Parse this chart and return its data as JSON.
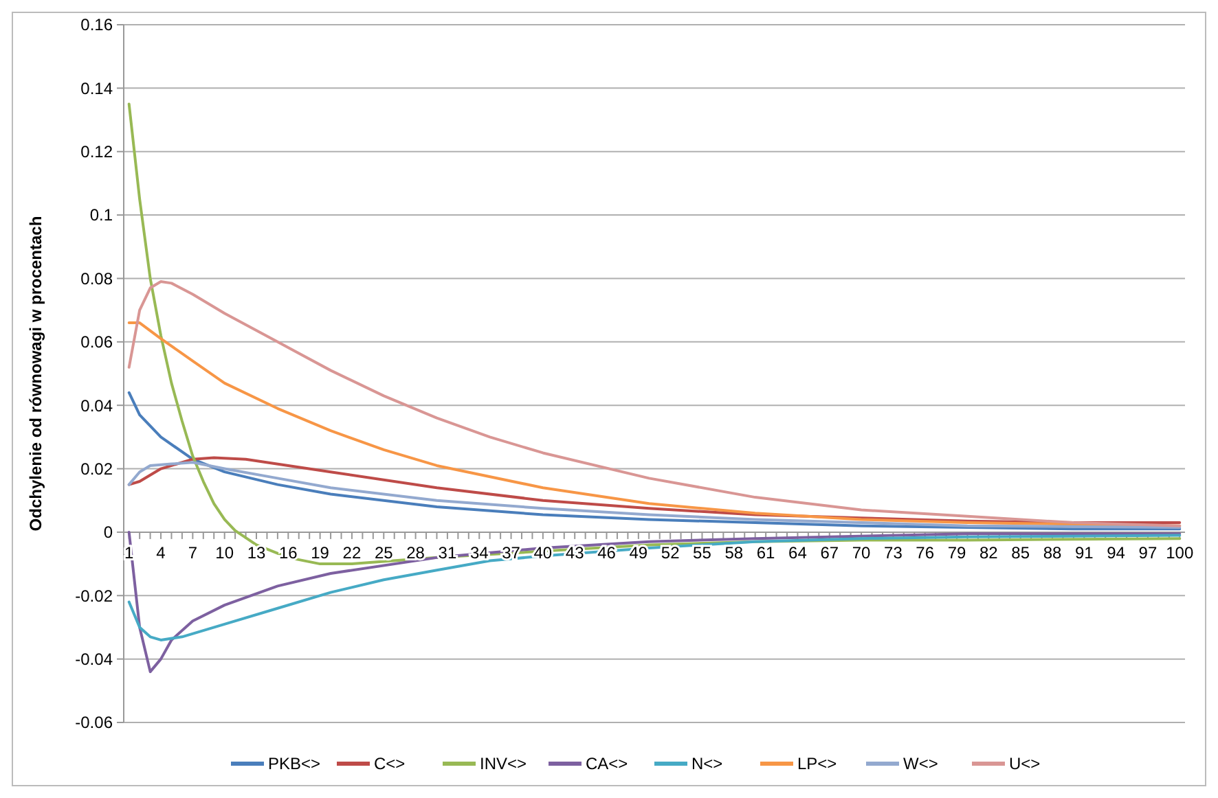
{
  "chart_data": {
    "type": "line",
    "ylabel": "Odchylenie od równowagi w procentach",
    "xlim": [
      0.5,
      100.5
    ],
    "xticks": [
      1,
      4,
      7,
      10,
      13,
      16,
      19,
      22,
      25,
      28,
      31,
      34,
      37,
      40,
      43,
      46,
      49,
      52,
      55,
      58,
      61,
      64,
      67,
      70,
      73,
      76,
      79,
      82,
      85,
      88,
      91,
      94,
      97,
      100
    ],
    "ylim": [
      -0.06,
      0.16
    ],
    "yticks": [
      -0.06,
      -0.04,
      -0.02,
      0,
      0.02,
      0.04,
      0.06,
      0.08,
      0.1,
      0.12,
      0.14,
      0.16
    ],
    "grid": "y",
    "legend": "bottom",
    "marker": "none",
    "line_style": "solid",
    "series": [
      {
        "name": "PKB<>",
        "color": "#4a7ebb",
        "x": [
          1,
          2,
          4,
          7,
          10,
          15,
          20,
          30,
          40,
          50,
          60,
          70,
          80,
          90,
          100
        ],
        "values": [
          0.044,
          0.037,
          0.03,
          0.023,
          0.019,
          0.015,
          0.012,
          0.008,
          0.0055,
          0.004,
          0.003,
          0.002,
          0.0015,
          0.001,
          0.001
        ]
      },
      {
        "name": "C<>",
        "color": "#be4b48",
        "x": [
          1,
          2,
          4,
          7,
          9,
          12,
          20,
          30,
          40,
          50,
          60,
          70,
          80,
          90,
          100
        ],
        "values": [
          0.015,
          0.016,
          0.02,
          0.023,
          0.0235,
          0.023,
          0.019,
          0.014,
          0.01,
          0.0075,
          0.0055,
          0.0045,
          0.0035,
          0.003,
          0.003
        ]
      },
      {
        "name": "INV<>",
        "color": "#98b954",
        "x": [
          1,
          2,
          3,
          4,
          5,
          6,
          7,
          8,
          9,
          10,
          11,
          13,
          16,
          19,
          22,
          30,
          40,
          50,
          60,
          70,
          80,
          100
        ],
        "values": [
          0.135,
          0.105,
          0.08,
          0.062,
          0.047,
          0.035,
          0.024,
          0.016,
          0.009,
          0.004,
          0.0005,
          -0.004,
          -0.008,
          -0.01,
          -0.01,
          -0.008,
          -0.006,
          -0.004,
          -0.003,
          -0.0025,
          -0.0025,
          -0.002
        ]
      },
      {
        "name": "CA<>",
        "color": "#7d60a0",
        "x": [
          1,
          2,
          3,
          4,
          5,
          7,
          10,
          15,
          20,
          30,
          40,
          50,
          60,
          80,
          100
        ],
        "values": [
          0,
          -0.03,
          -0.044,
          -0.04,
          -0.034,
          -0.028,
          -0.023,
          -0.017,
          -0.013,
          -0.008,
          -0.005,
          -0.003,
          -0.002,
          -0.0005,
          -0.0005
        ]
      },
      {
        "name": "N<>",
        "color": "#46aac5",
        "x": [
          1,
          2,
          3,
          4,
          6,
          10,
          15,
          20,
          25,
          30,
          35,
          40,
          50,
          60,
          70,
          80,
          100
        ],
        "values": [
          -0.022,
          -0.03,
          -0.033,
          -0.034,
          -0.033,
          -0.029,
          -0.024,
          -0.019,
          -0.015,
          -0.012,
          -0.009,
          -0.0075,
          -0.005,
          -0.003,
          -0.002,
          -0.0015,
          -0.001
        ]
      },
      {
        "name": "LP<>",
        "color": "#f79646",
        "x": [
          1,
          2,
          4,
          7,
          10,
          15,
          20,
          25,
          30,
          40,
          50,
          60,
          70,
          80,
          100
        ],
        "values": [
          0.066,
          0.066,
          0.061,
          0.054,
          0.047,
          0.039,
          0.032,
          0.026,
          0.021,
          0.014,
          0.009,
          0.006,
          0.004,
          0.003,
          0.002
        ]
      },
      {
        "name": "W<>",
        "color": "#93a9cf",
        "x": [
          1,
          2,
          3,
          5,
          7,
          10,
          15,
          20,
          30,
          40,
          50,
          60,
          70,
          80,
          100
        ],
        "values": [
          0.015,
          0.019,
          0.021,
          0.0215,
          0.022,
          0.02,
          0.017,
          0.014,
          0.01,
          0.0075,
          0.0055,
          0.004,
          0.003,
          0.002,
          0.0015
        ]
      },
      {
        "name": "U<>",
        "color": "#d99694",
        "x": [
          1,
          2,
          3,
          4,
          5,
          7,
          10,
          15,
          20,
          25,
          30,
          35,
          40,
          50,
          60,
          70,
          80,
          90,
          100
        ],
        "values": [
          0.052,
          0.07,
          0.077,
          0.079,
          0.0785,
          0.075,
          0.069,
          0.06,
          0.051,
          0.043,
          0.036,
          0.03,
          0.025,
          0.017,
          0.011,
          0.007,
          0.005,
          0.003,
          0.002
        ]
      }
    ]
  }
}
